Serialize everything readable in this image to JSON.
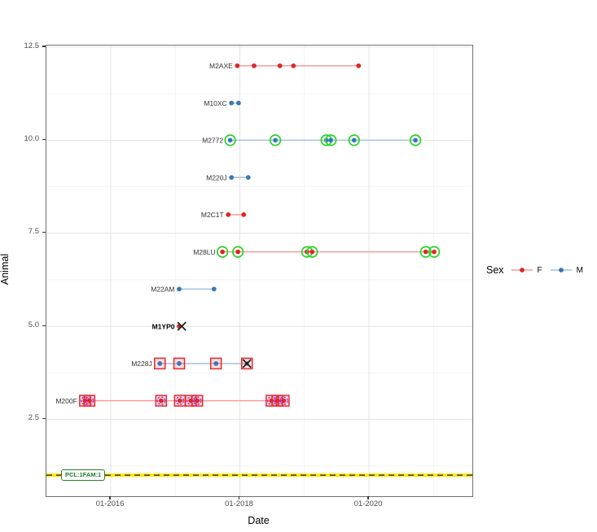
{
  "chart_data": {
    "type": "scatter",
    "title": "",
    "xlabel": "Date",
    "ylabel": "Animal",
    "x_axis": {
      "ticks": [
        {
          "label": "01-2016",
          "value": 2016.0
        },
        {
          "label": "01-2018",
          "value": 2018.0
        },
        {
          "label": "01-2020",
          "value": 2020.0
        }
      ],
      "minor": [
        2017.0,
        2019.0,
        2021.0
      ],
      "range": [
        2015.03,
        2021.6
      ]
    },
    "y_axis": {
      "ticks": [
        {
          "label": "12.5",
          "value": 12.5
        },
        {
          "label": "10.0",
          "value": 10.0
        },
        {
          "label": "7.5",
          "value": 7.5
        },
        {
          "label": "5.0",
          "value": 5.0
        },
        {
          "label": "2.5",
          "value": 2.5
        }
      ],
      "minor": [
        11.25,
        8.75,
        6.25,
        3.75,
        1.25
      ],
      "range": [
        0.4,
        12.55
      ]
    },
    "legend": {
      "title": "Sex",
      "items": [
        {
          "label": "F",
          "color": "#e02426",
          "line_color": "#f59c9b"
        },
        {
          "label": "M",
          "color": "#3a77b5",
          "line_color": "#a4c2de"
        }
      ],
      "position": "right"
    },
    "marker_colors": {
      "green_ring": "#2fd42f",
      "red_square": "#e7292b",
      "red_square_fill": "rgba(231,41,41,0.16)",
      "violet_ring": "#a128d6",
      "x_mark": "#1a1a1a"
    },
    "ref_line": {
      "y": 1,
      "label": "PCL:1FAM:1",
      "line_color": "#ffe800",
      "dash_color": "#1a1a1a",
      "label_color": "#1e7a2e"
    },
    "grid": {
      "major": true,
      "minor": true
    },
    "series": [
      {
        "animal": "M2AXE",
        "y": 12,
        "sex": "F",
        "bold": false,
        "line": [
          2017.96,
          2019.84
        ],
        "points": [
          {
            "x": 2017.96,
            "m": "dot"
          },
          {
            "x": 2018.22,
            "m": "dot"
          },
          {
            "x": 2018.62,
            "m": "dot"
          },
          {
            "x": 2018.83,
            "m": "dot"
          },
          {
            "x": 2019.84,
            "m": "dot"
          }
        ]
      },
      {
        "animal": "M10XC",
        "y": 11,
        "sex": "M",
        "bold": false,
        "line": [
          2017.87,
          2017.98
        ],
        "points": [
          {
            "x": 2017.87,
            "m": "dot"
          },
          {
            "x": 2017.98,
            "m": "dot"
          }
        ]
      },
      {
        "animal": "M2772",
        "y": 10,
        "sex": "M",
        "bold": false,
        "line": [
          2017.85,
          2020.72
        ],
        "points": [
          {
            "x": 2017.85,
            "m": "circled"
          },
          {
            "x": 2018.55,
            "m": "circled"
          },
          {
            "x": 2019.34,
            "m": "circled"
          },
          {
            "x": 2019.41,
            "m": "circled"
          },
          {
            "x": 2019.77,
            "m": "circled"
          },
          {
            "x": 2020.72,
            "m": "circled"
          }
        ]
      },
      {
        "animal": "M220J",
        "y": 9,
        "sex": "M",
        "bold": false,
        "line": [
          2017.87,
          2018.13
        ],
        "points": [
          {
            "x": 2017.87,
            "m": "dot"
          },
          {
            "x": 2018.13,
            "m": "dot"
          }
        ]
      },
      {
        "animal": "M2C1T",
        "y": 8,
        "sex": "F",
        "bold": false,
        "line": [
          2017.82,
          2018.06
        ],
        "points": [
          {
            "x": 2017.82,
            "m": "dot"
          },
          {
            "x": 2018.06,
            "m": "dot"
          }
        ]
      },
      {
        "animal": "M28LU",
        "y": 7,
        "sex": "F",
        "bold": false,
        "line": [
          2017.73,
          2021.01
        ],
        "points": [
          {
            "x": 2017.73,
            "m": "circled"
          },
          {
            "x": 2017.97,
            "m": "circled"
          },
          {
            "x": 2019.04,
            "m": "circled"
          },
          {
            "x": 2019.12,
            "m": "circled"
          },
          {
            "x": 2020.88,
            "m": "circled"
          },
          {
            "x": 2021.01,
            "m": "circled"
          }
        ]
      },
      {
        "animal": "M22AM",
        "y": 6,
        "sex": "M",
        "bold": false,
        "line": [
          2017.06,
          2017.6
        ],
        "points": [
          {
            "x": 2017.06,
            "m": "dot"
          },
          {
            "x": 2017.6,
            "m": "dot"
          }
        ]
      },
      {
        "animal": "M1YP0",
        "y": 5,
        "sex": "F",
        "bold": true,
        "line": null,
        "points": [
          {
            "x": 2017.06,
            "m": "dot"
          },
          {
            "x": 2017.1,
            "m": "x_black"
          }
        ]
      },
      {
        "animal": "M228J",
        "y": 4,
        "sex": "M",
        "bold": false,
        "line": [
          2016.76,
          2018.11
        ],
        "points": [
          {
            "x": 2016.76,
            "m": "square_dot"
          },
          {
            "x": 2017.06,
            "m": "square_dot"
          },
          {
            "x": 2017.63,
            "m": "square_dot"
          },
          {
            "x": 2018.11,
            "m": "square_x"
          }
        ]
      },
      {
        "animal": "M200F",
        "y": 3,
        "sex": "F",
        "bold": false,
        "line": [
          2015.6,
          2018.68
        ],
        "points": [
          {
            "x": 2015.6,
            "m": "square_ring_dot"
          },
          {
            "x": 2015.67,
            "m": "square_ring_dot"
          },
          {
            "x": 2016.78,
            "m": "square_ring_dot"
          },
          {
            "x": 2017.07,
            "m": "square_ring_dot"
          },
          {
            "x": 2017.24,
            "m": "square_ring_dot"
          },
          {
            "x": 2017.34,
            "m": "square_ring_dot"
          },
          {
            "x": 2018.49,
            "m": "square_ring_dot"
          },
          {
            "x": 2018.58,
            "m": "square_ring_dot"
          },
          {
            "x": 2018.68,
            "m": "square_ring_dot"
          }
        ]
      }
    ]
  }
}
